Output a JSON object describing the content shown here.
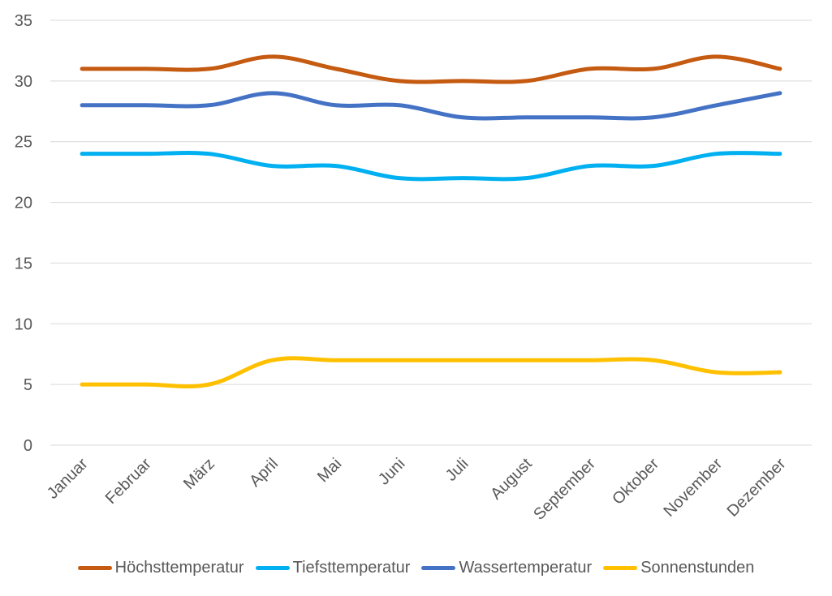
{
  "chart_data": {
    "type": "line",
    "categories": [
      "Januar",
      "Februar",
      "März",
      "April",
      "Mai",
      "Juni",
      "Juli",
      "August",
      "September",
      "Oktober",
      "November",
      "Dezember"
    ],
    "series": [
      {
        "name": "Höchsttemperatur",
        "color": "#C55A11",
        "values": [
          31,
          31,
          31,
          32,
          31,
          30,
          30,
          30,
          31,
          31,
          32,
          31
        ]
      },
      {
        "name": "Tiefsttemperatur",
        "color": "#00B0F0",
        "values": [
          24,
          24,
          24,
          23,
          23,
          22,
          22,
          22,
          23,
          23,
          24,
          24
        ]
      },
      {
        "name": "Wassertemperatur",
        "color": "#4472C4",
        "values": [
          28,
          28,
          28,
          29,
          28,
          28,
          27,
          27,
          27,
          27,
          28,
          29
        ]
      },
      {
        "name": "Sonnenstunden",
        "color": "#FFC000",
        "values": [
          5,
          5,
          5,
          7,
          7,
          7,
          7,
          7,
          7,
          7,
          6,
          6
        ]
      }
    ],
    "ylim": [
      0,
      35
    ],
    "yticks": [
      0,
      5,
      10,
      15,
      20,
      25,
      30,
      35
    ],
    "grid": true,
    "smooth": true,
    "legend_position": "bottom"
  }
}
